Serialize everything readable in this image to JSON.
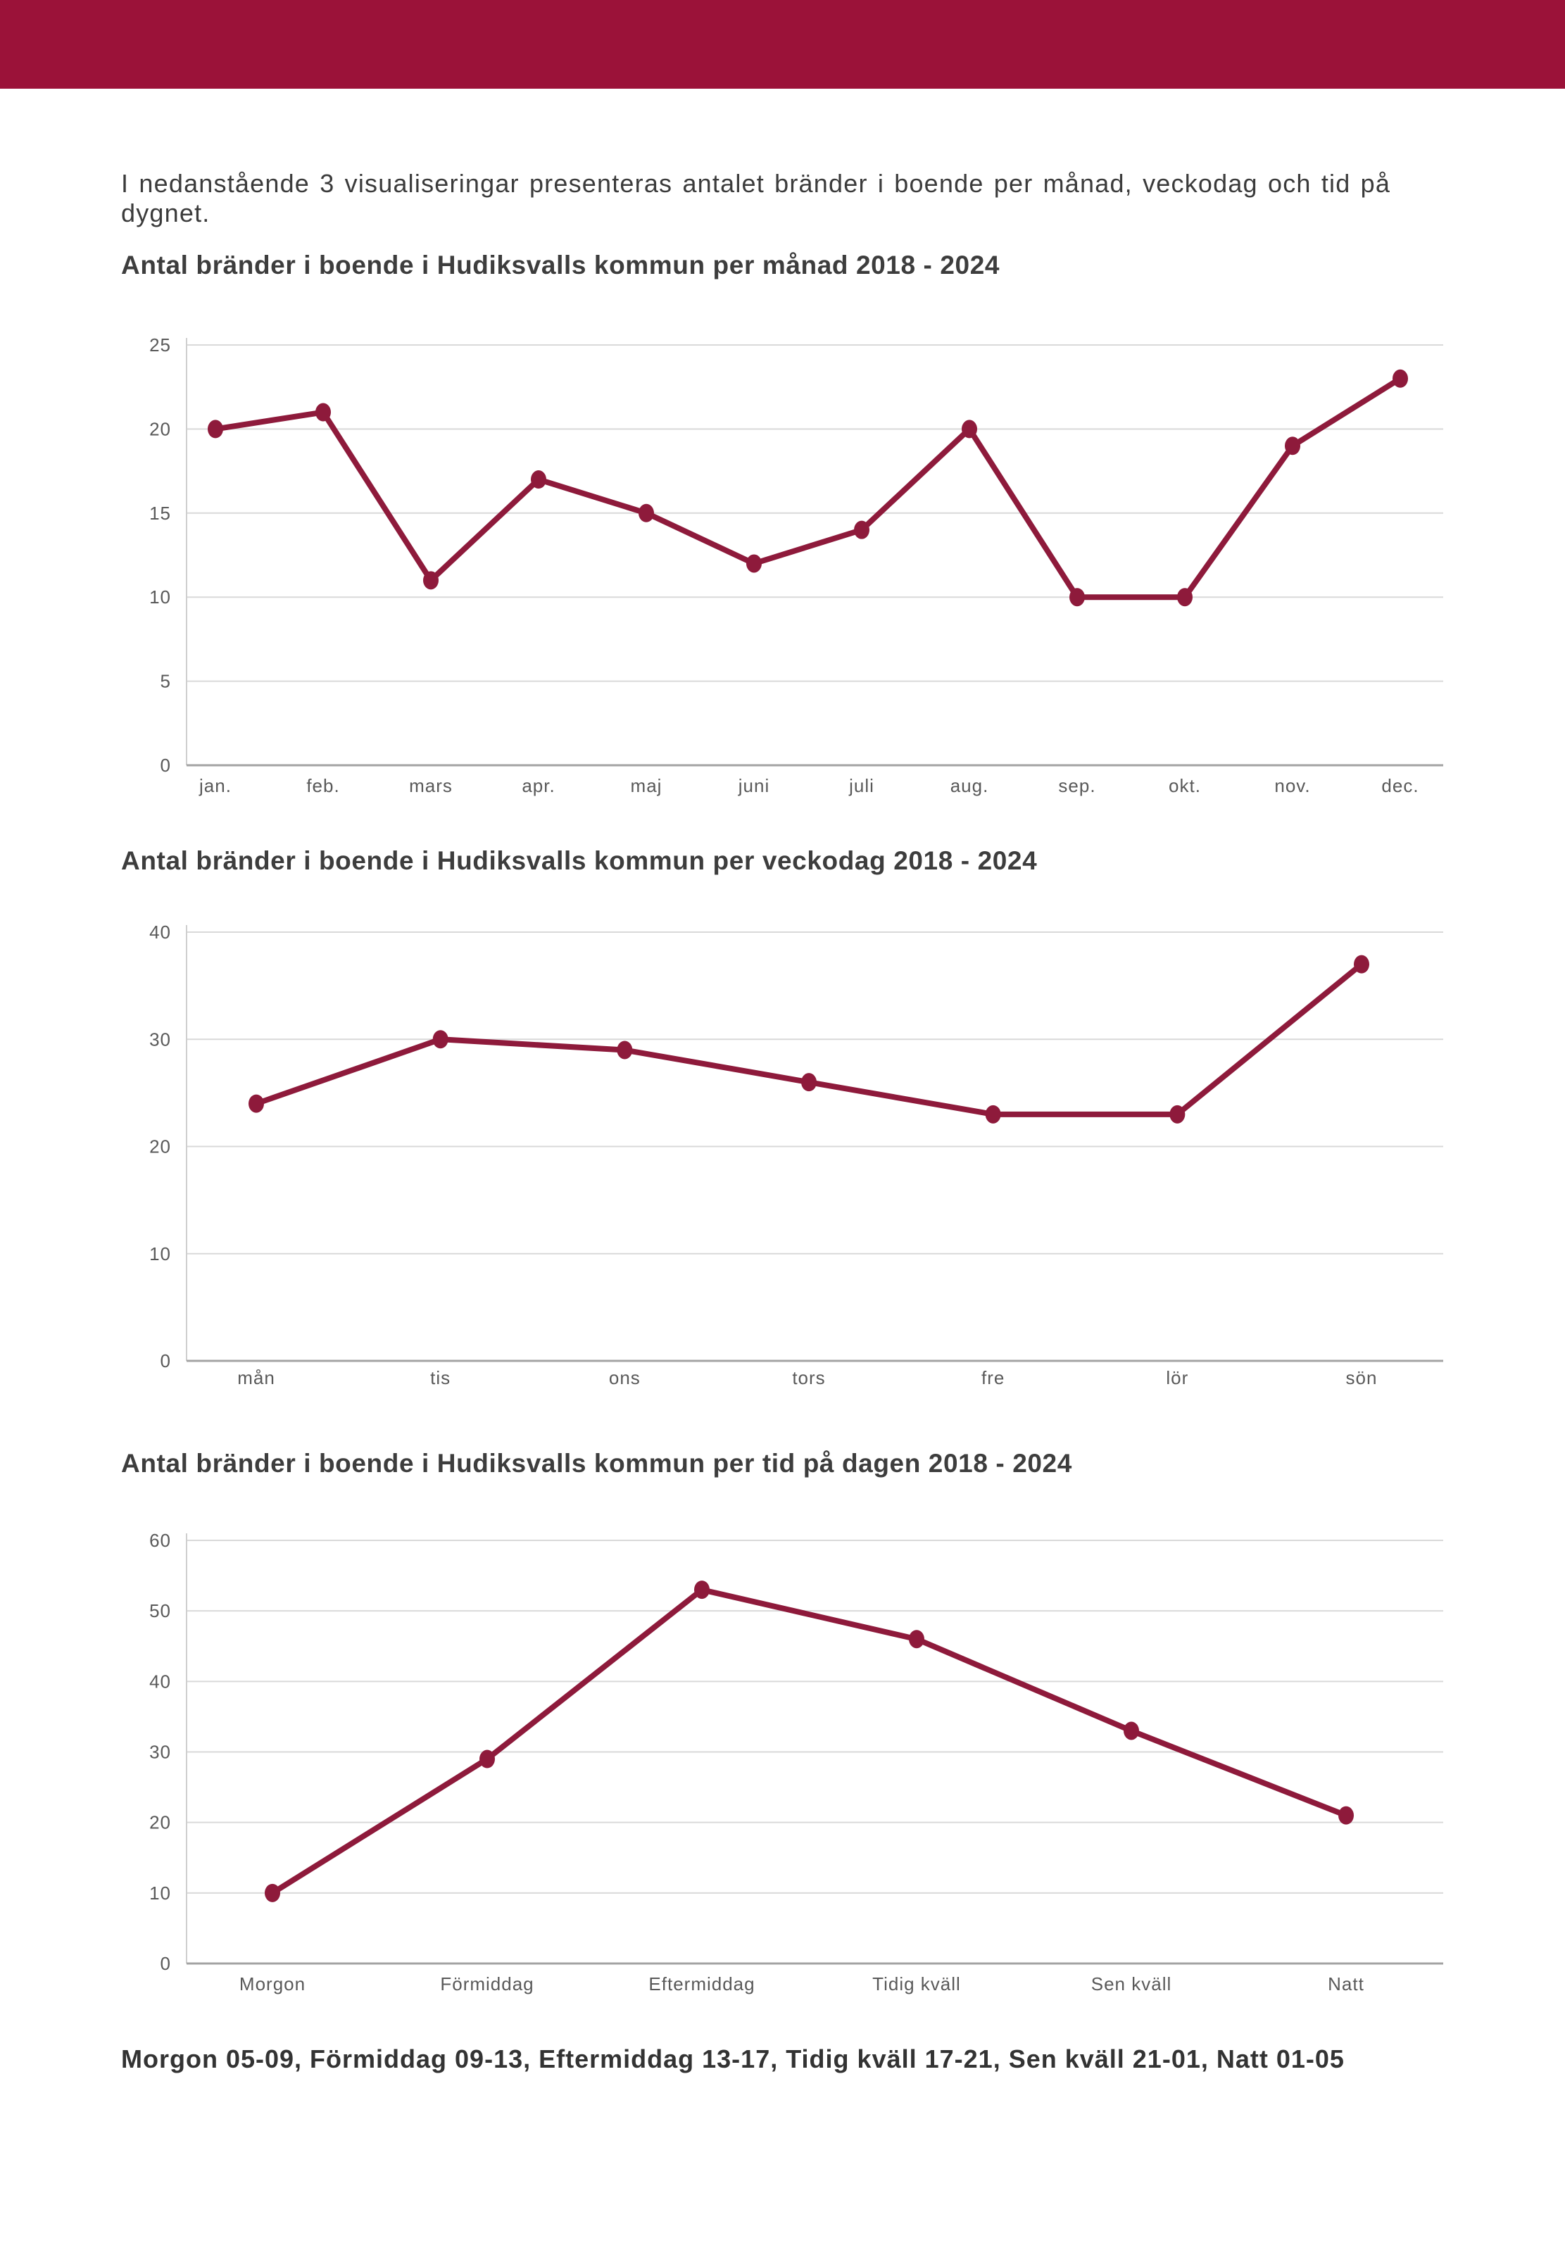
{
  "page": {
    "intro_text": "I nedanstående 3 visualiseringar presenteras antalet bränder i boende per månad, veckodag och tid på dygnet.",
    "footer_text": "Morgon 05-09, Förmiddag 09-13, Eftermiddag 13-17, Tidig kväll 17-21, Sen kväll 21-01, Natt 01-05"
  },
  "colors": {
    "header_bar": "#9b1239",
    "line": "#8e1a3b",
    "marker": "#8e1a3b",
    "grid": "#d9d9d9",
    "axis_bottom": "#a3a3a3",
    "axis_left": "#cfcfcf",
    "tick_text": "#595959",
    "title_text": "#3d3d3d"
  },
  "chart_data": [
    {
      "type": "line",
      "title": "Antal bränder i boende i Hudiksvalls kommun per månad 2018 - 2024",
      "categories": [
        "jan.",
        "feb.",
        "mars",
        "apr.",
        "maj",
        "juni",
        "juli",
        "aug.",
        "sep.",
        "okt.",
        "nov.",
        "dec."
      ],
      "values": [
        20,
        21,
        11,
        17,
        15,
        12,
        14,
        20,
        10,
        10,
        19,
        23
      ],
      "xlabel": "",
      "ylabel": "",
      "ylim": [
        0,
        25
      ],
      "yticks": [
        0,
        5,
        10,
        15,
        20,
        25
      ],
      "grid": true,
      "legend": false
    },
    {
      "type": "line",
      "title": "Antal bränder i boende i Hudiksvalls kommun per veckodag 2018 - 2024",
      "categories": [
        "mån",
        "tis",
        "ons",
        "tors",
        "fre",
        "lör",
        "sön"
      ],
      "values": [
        24,
        30,
        29,
        26,
        23,
        23,
        37
      ],
      "xlabel": "",
      "ylabel": "",
      "ylim": [
        0,
        40
      ],
      "yticks": [
        0,
        10,
        20,
        30,
        40
      ],
      "grid": true,
      "legend": false
    },
    {
      "type": "line",
      "title": "Antal bränder i boende i Hudiksvalls kommun per tid på dagen 2018 - 2024",
      "categories": [
        "Morgon",
        "Förmiddag",
        "Eftermiddag",
        "Tidig kväll",
        "Sen kväll",
        "Natt"
      ],
      "values": [
        10,
        29,
        53,
        46,
        33,
        21
      ],
      "xlabel": "",
      "ylabel": "",
      "ylim": [
        0,
        60
      ],
      "yticks": [
        0,
        10,
        20,
        30,
        40,
        50,
        60
      ],
      "grid": true,
      "legend": false
    }
  ]
}
